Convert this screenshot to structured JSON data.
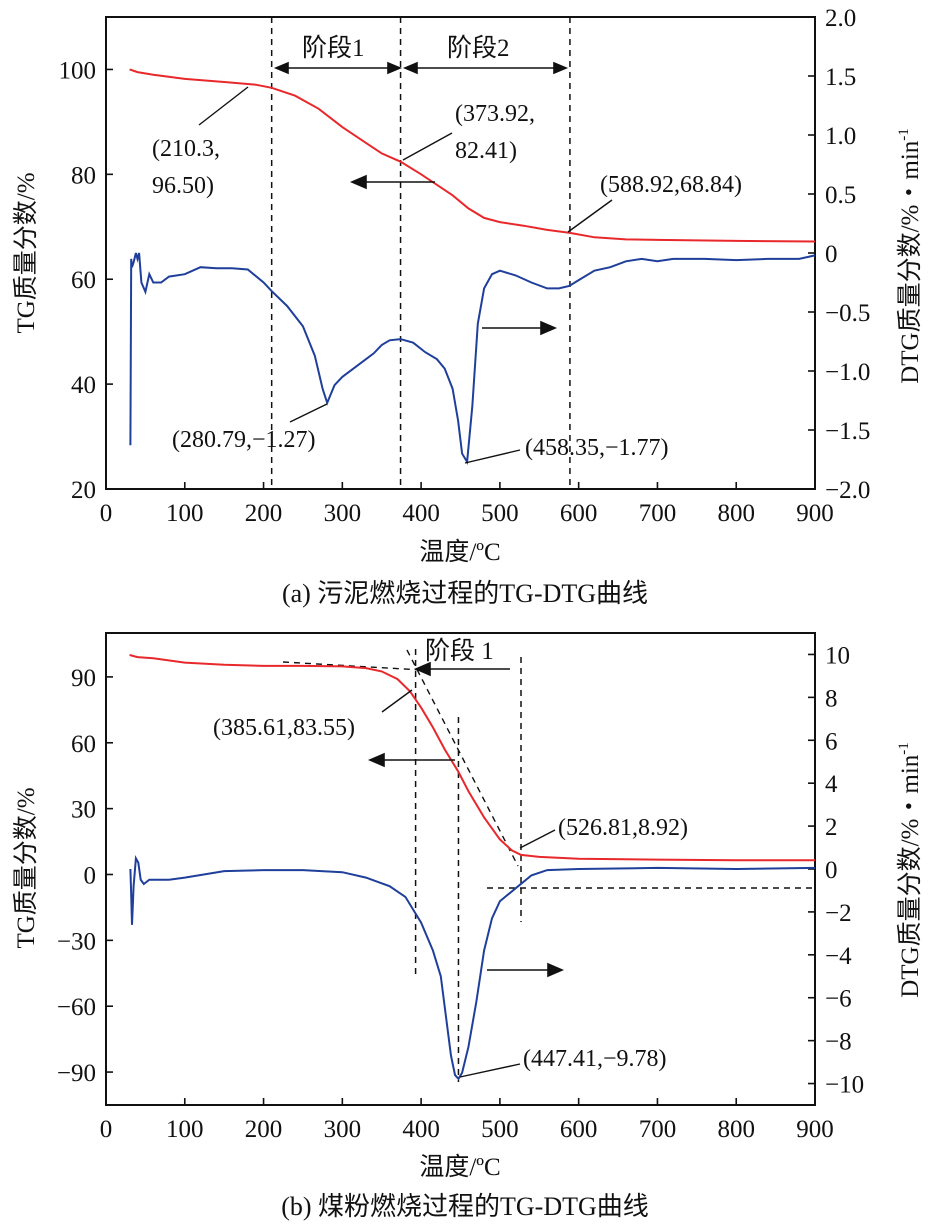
{
  "colors": {
    "tg": "#e8282b",
    "dtg": "#1f3f9a",
    "axis": "#111111"
  },
  "chart_data": [
    {
      "type": "line",
      "caption": "(a) 污泥燃烧过程的TG-DTG曲线",
      "xlabel": "温度/ºC",
      "ylabel_left": "TG质量分数/%",
      "ylabel_right": "DTG质量分数/%・min",
      "ylabel_right_sup": "-1",
      "xlim": [
        0,
        900
      ],
      "ylim_left": [
        20,
        110
      ],
      "ylim_right": [
        -2.0,
        2.0
      ],
      "x_ticks": [
        "0",
        "100",
        "200",
        "300",
        "400",
        "500",
        "600",
        "700",
        "800",
        "900"
      ],
      "yl_ticks": [
        "20",
        "40",
        "60",
        "80",
        "100"
      ],
      "yr_ticks": [
        "−2.0",
        "−1.5",
        "−1.0",
        "−0.5",
        "0",
        "0.5",
        "1.0",
        "1.5",
        "2.0"
      ],
      "series": [
        {
          "name": "TG",
          "axis": "left",
          "points": [
            [
              30,
              100
            ],
            [
              40,
              99.5
            ],
            [
              60,
              99
            ],
            [
              100,
              98.2
            ],
            [
              150,
              97.6
            ],
            [
              190,
              97.1
            ],
            [
              210.3,
              96.5
            ],
            [
              240,
              95
            ],
            [
              270,
              92.5
            ],
            [
              300,
              89
            ],
            [
              330,
              86
            ],
            [
              350,
              84
            ],
            [
              373.92,
              82.41
            ],
            [
              400,
              80
            ],
            [
              420,
              78
            ],
            [
              440,
              76
            ],
            [
              460,
              73.5
            ],
            [
              480,
              71.7
            ],
            [
              500,
              70.9
            ],
            [
              530,
              70.2
            ],
            [
              560,
              69.4
            ],
            [
              588.92,
              68.84
            ],
            [
              620,
              68
            ],
            [
              660,
              67.6
            ],
            [
              700,
              67.5
            ],
            [
              800,
              67.3
            ],
            [
              900,
              67.2
            ]
          ]
        },
        {
          "name": "DTG",
          "axis": "right",
          "points": [
            [
              31,
              -1.63
            ],
            [
              32,
              -0.05
            ],
            [
              33,
              -0.12
            ],
            [
              35,
              -0.08
            ],
            [
              38,
              0.0
            ],
            [
              40,
              -0.05
            ],
            [
              42,
              0.0
            ],
            [
              45,
              -0.25
            ],
            [
              50,
              -0.33
            ],
            [
              55,
              -0.18
            ],
            [
              60,
              -0.25
            ],
            [
              70,
              -0.25
            ],
            [
              80,
              -0.2
            ],
            [
              100,
              -0.18
            ],
            [
              120,
              -0.12
            ],
            [
              140,
              -0.13
            ],
            [
              160,
              -0.13
            ],
            [
              180,
              -0.14
            ],
            [
              200,
              -0.25
            ],
            [
              210,
              -0.32
            ],
            [
              230,
              -0.45
            ],
            [
              250,
              -0.62
            ],
            [
              265,
              -0.87
            ],
            [
              275,
              -1.15
            ],
            [
              280.79,
              -1.27
            ],
            [
              290,
              -1.12
            ],
            [
              300,
              -1.05
            ],
            [
              320,
              -0.95
            ],
            [
              340,
              -0.85
            ],
            [
              350,
              -0.78
            ],
            [
              360,
              -0.74
            ],
            [
              373.92,
              -0.73
            ],
            [
              390,
              -0.76
            ],
            [
              405,
              -0.84
            ],
            [
              420,
              -0.9
            ],
            [
              430,
              -0.98
            ],
            [
              440,
              -1.15
            ],
            [
              447,
              -1.42
            ],
            [
              452,
              -1.7
            ],
            [
              458.35,
              -1.77
            ],
            [
              465,
              -1.3
            ],
            [
              472,
              -0.6
            ],
            [
              480,
              -0.3
            ],
            [
              490,
              -0.18
            ],
            [
              500,
              -0.15
            ],
            [
              520,
              -0.19
            ],
            [
              540,
              -0.25
            ],
            [
              560,
              -0.3
            ],
            [
              575,
              -0.3
            ],
            [
              588,
              -0.28
            ],
            [
              600,
              -0.23
            ],
            [
              620,
              -0.15
            ],
            [
              640,
              -0.12
            ],
            [
              660,
              -0.07
            ],
            [
              680,
              -0.05
            ],
            [
              700,
              -0.07
            ],
            [
              720,
              -0.05
            ],
            [
              760,
              -0.05
            ],
            [
              800,
              -0.06
            ],
            [
              840,
              -0.05
            ],
            [
              880,
              -0.05
            ],
            [
              900,
              -0.02
            ]
          ]
        }
      ],
      "vlines": [
        210.3,
        373.92,
        588.92
      ],
      "stages": [
        "阶段1",
        "阶段2"
      ],
      "annotations": [
        {
          "line1": "(210.3,",
          "line2": "96.50)"
        },
        {
          "line1": "(373.92,",
          "line2": "82.41)"
        },
        {
          "line1": "(588.92,68.84)"
        },
        {
          "line1": "(280.79,−1.27)"
        },
        {
          "line1": "(458.35,−1.77)"
        }
      ]
    },
    {
      "type": "line",
      "caption": "(b) 煤粉燃烧过程的TG-DTG曲线",
      "xlabel": "温度/ºC",
      "ylabel_left": "TG质量分数/%",
      "ylabel_right": "DTG质量分数/%・min",
      "ylabel_right_sup": "-1",
      "xlim": [
        0,
        900
      ],
      "ylim_left": [
        -105,
        110
      ],
      "ylim_right": [
        -11,
        11
      ],
      "x_ticks": [
        "0",
        "100",
        "200",
        "300",
        "400",
        "500",
        "600",
        "700",
        "800",
        "900"
      ],
      "yl_ticks": [
        "−90",
        "−60",
        "−30",
        "0",
        "30",
        "60",
        "90"
      ],
      "yr_ticks": [
        "−10",
        "−8",
        "−6",
        "−4",
        "−2",
        "0",
        "2",
        "4",
        "6",
        "8",
        "10"
      ],
      "series": [
        {
          "name": "TG",
          "axis": "left",
          "points": [
            [
              30,
              100
            ],
            [
              40,
              99
            ],
            [
              60,
              98.5
            ],
            [
              100,
              96.5
            ],
            [
              150,
              95.5
            ],
            [
              200,
              95
            ],
            [
              250,
              95
            ],
            [
              300,
              94.8
            ],
            [
              330,
              94
            ],
            [
              350,
              92.5
            ],
            [
              370,
              89
            ],
            [
              385.61,
              83.55
            ],
            [
              400,
              76
            ],
            [
              415,
              67
            ],
            [
              430,
              57
            ],
            [
              447,
              47
            ],
            [
              460,
              38
            ],
            [
              480,
              26
            ],
            [
              500,
              16
            ],
            [
              515,
              11
            ],
            [
              526.81,
              8.92
            ],
            [
              550,
              8
            ],
            [
              600,
              7.2
            ],
            [
              700,
              6.8
            ],
            [
              800,
              6.5
            ],
            [
              900,
              6.5
            ]
          ]
        },
        {
          "name": "DTG",
          "axis": "right",
          "points": [
            [
              31,
              0
            ],
            [
              32,
              -1.2
            ],
            [
              33,
              -2.6
            ],
            [
              35,
              -0.8
            ],
            [
              38,
              0.5
            ],
            [
              41,
              0.3
            ],
            [
              44,
              -0.5
            ],
            [
              48,
              -0.7
            ],
            [
              55,
              -0.5
            ],
            [
              80,
              -0.5
            ],
            [
              100,
              -0.4
            ],
            [
              150,
              -0.1
            ],
            [
              200,
              -0.05
            ],
            [
              250,
              -0.05
            ],
            [
              300,
              -0.15
            ],
            [
              330,
              -0.4
            ],
            [
              360,
              -0.8
            ],
            [
              380,
              -1.3
            ],
            [
              400,
              -2.5
            ],
            [
              415,
              -3.8
            ],
            [
              425,
              -5
            ],
            [
              432,
              -7
            ],
            [
              438,
              -8.7
            ],
            [
              443,
              -9.6
            ],
            [
              447.41,
              -9.78
            ],
            [
              452,
              -9.5
            ],
            [
              460,
              -8.3
            ],
            [
              470,
              -6.2
            ],
            [
              480,
              -3.8
            ],
            [
              490,
              -2.3
            ],
            [
              500,
              -1.5
            ],
            [
              520,
              -0.9
            ],
            [
              540,
              -0.3
            ],
            [
              560,
              -0.05
            ],
            [
              600,
              0
            ],
            [
              700,
              0.05
            ],
            [
              800,
              0
            ],
            [
              900,
              0.05
            ]
          ]
        }
      ],
      "vlines": [
        393,
        447.41,
        526.81
      ],
      "stages": [
        "阶段 1"
      ],
      "annotations": [
        {
          "line1": "(385.61,83.55)"
        },
        {
          "line1": "(526.81,8.92)"
        },
        {
          "line1": "(447.41,−9.78)"
        }
      ]
    }
  ]
}
